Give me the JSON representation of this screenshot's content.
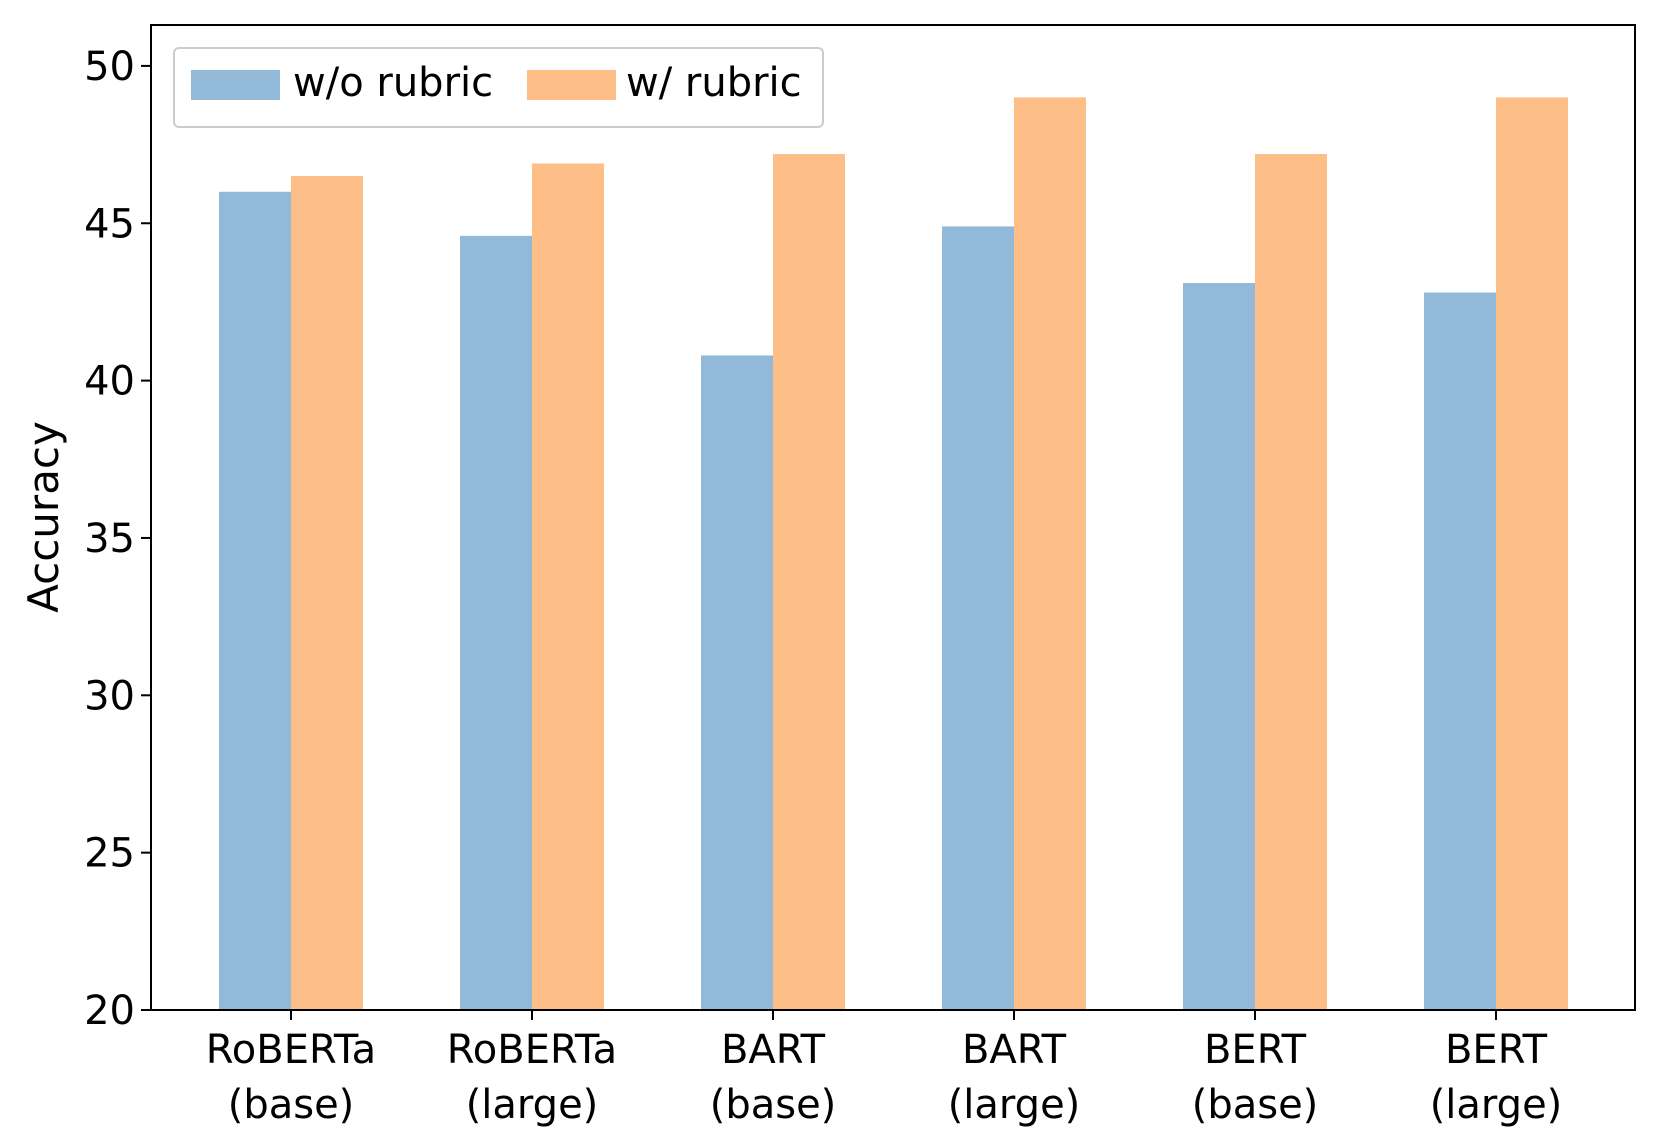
{
  "chart_data": {
    "type": "bar",
    "title": "",
    "xlabel": "",
    "ylabel": "Accuracy",
    "ylim": [
      20,
      51.3
    ],
    "yticks": [
      20,
      25,
      30,
      35,
      40,
      45,
      50
    ],
    "grid": false,
    "legend_position": "top-left",
    "categories": [
      [
        "RoBERTa",
        "(base)"
      ],
      [
        "RoBERTa",
        "(large)"
      ],
      [
        "BART",
        "(base)"
      ],
      [
        "BART",
        "(large)"
      ],
      [
        "BERT",
        "(base)"
      ],
      [
        "BERT",
        "(large)"
      ]
    ],
    "series": [
      {
        "name": "w/o rubric",
        "color": "#92b9d8",
        "values": [
          46.0,
          44.6,
          40.8,
          44.9,
          43.1,
          42.8
        ]
      },
      {
        "name": "w/ rubric",
        "color": "#fdbf87",
        "values": [
          46.5,
          46.9,
          47.2,
          49.0,
          47.2,
          49.0
        ]
      }
    ]
  }
}
